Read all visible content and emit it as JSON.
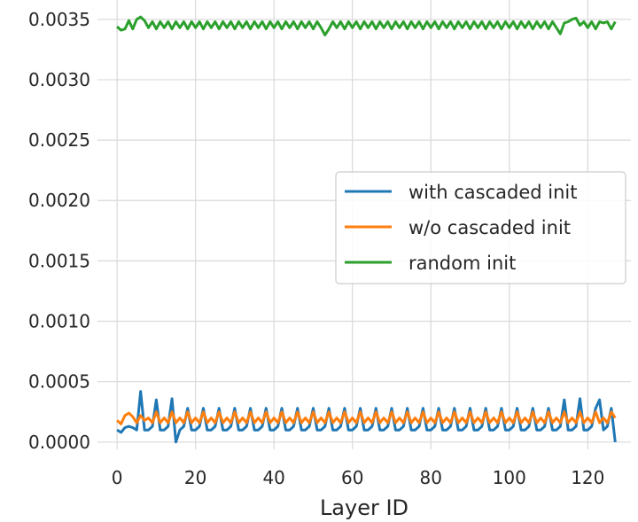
{
  "chart_data": {
    "type": "line",
    "title": "",
    "xlabel": "Layer ID",
    "ylabel": "",
    "xlim": [
      -5,
      131
    ],
    "ylim": [
      -6e-05,
      0.00366
    ],
    "xticks": [
      0,
      20,
      40,
      60,
      80,
      100,
      120
    ],
    "yticks": [
      0.0,
      0.0005,
      0.001,
      0.0015,
      0.002,
      0.0025,
      0.003,
      0.0035
    ],
    "xtick_labels": [
      "0",
      "20",
      "40",
      "60",
      "80",
      "100",
      "120"
    ],
    "ytick_labels": [
      "0.0000",
      "0.0005",
      "0.0010",
      "0.0015",
      "0.0020",
      "0.0025",
      "0.0030",
      "0.0035"
    ],
    "grid": true,
    "legend_position": "center-right",
    "series": [
      {
        "name": "with cascaded init",
        "color": "#1f77b4",
        "x_start": 0,
        "x_end": 127,
        "period": 4,
        "pattern": [
          0.0001,
          0.00013,
          0.00028,
          0.0001
        ],
        "overrides": {
          "1": 8e-05,
          "2": 0.00012,
          "3": 0.00013,
          "4": 0.00012,
          "5": 0.0001,
          "6": 0.00042,
          "10": 0.00035,
          "14": 0.00036,
          "15": 0.0,
          "114": 0.00035,
          "118": 0.00036,
          "123": 0.00035,
          "127": 0.0
        }
      },
      {
        "name": "w/o cascaded init",
        "color": "#ff7f0e",
        "x_start": 0,
        "x_end": 127,
        "period": 4,
        "pattern": [
          0.0002,
          0.00016,
          0.00025,
          0.00016
        ],
        "overrides": {
          "0": 0.00018,
          "1": 0.00015,
          "2": 0.00022,
          "3": 0.00024,
          "4": 0.00021,
          "5": 0.00016,
          "6": 0.00022,
          "7": 0.00018,
          "127": 0.0002
        }
      },
      {
        "name": "random init",
        "color": "#2ca02c",
        "x_start": 0,
        "x_end": 127,
        "period": 4,
        "pattern": [
          0.00343,
          0.00348,
          0.00342,
          0.00348
        ],
        "overrides": {
          "0": 0.00344,
          "1": 0.00341,
          "2": 0.00342,
          "3": 0.00349,
          "4": 0.00342,
          "5": 0.0035,
          "6": 0.00352,
          "7": 0.00349,
          "53": 0.00337,
          "113": 0.00338,
          "114": 0.00347,
          "116": 0.0035,
          "117": 0.00351,
          "118": 0.00345,
          "124": 0.00347,
          "127": 0.00348
        }
      }
    ]
  }
}
